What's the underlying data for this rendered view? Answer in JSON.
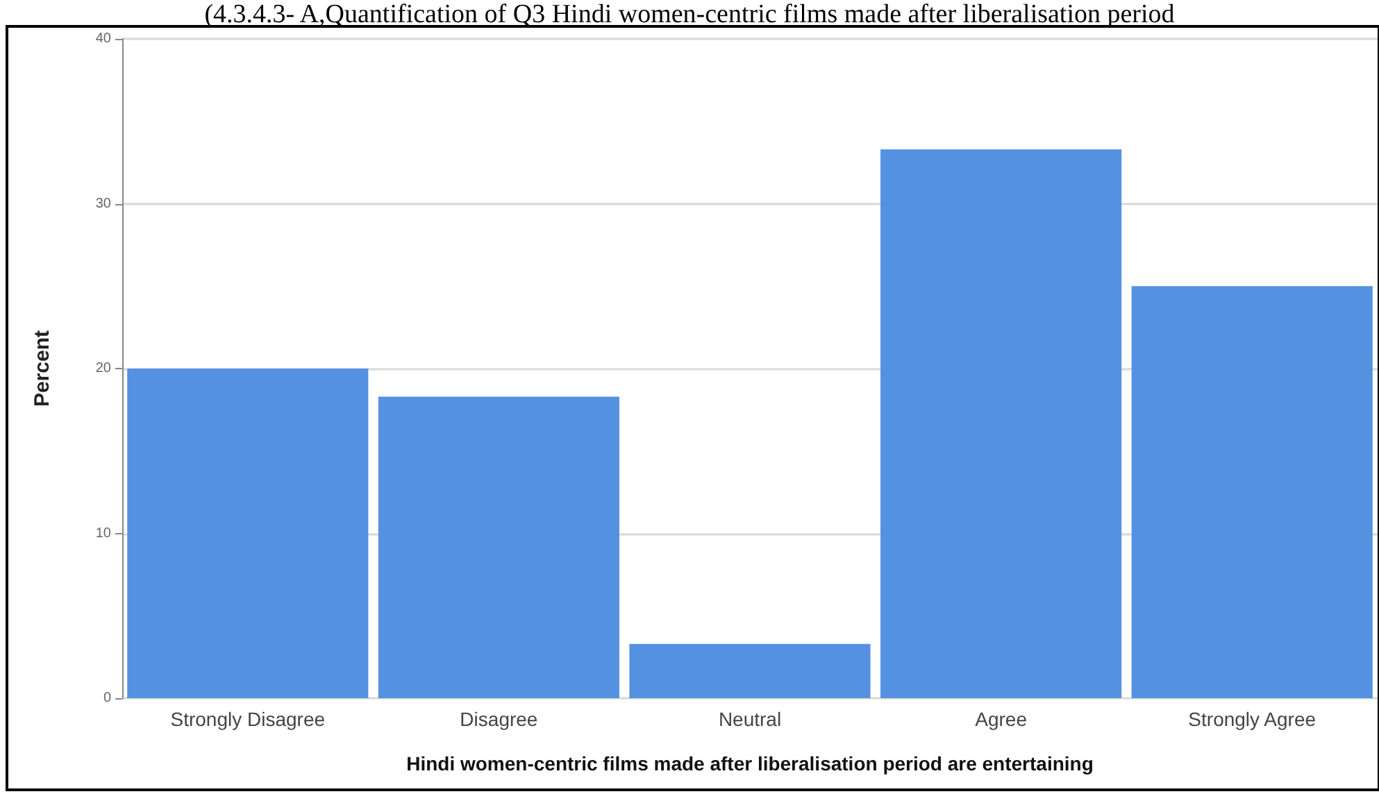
{
  "chart_data": {
    "type": "bar",
    "title": "(4.3.4.3- A,Quantification of Q3 Hindi women-centric films made after liberalisation period",
    "categories": [
      "Strongly Disagree",
      "Disagree",
      "Neutral",
      "Agree",
      "Strongly Agree"
    ],
    "values": [
      20,
      18.3,
      3.3,
      33.3,
      25
    ],
    "color": "#5591e1",
    "xlabel": "Hindi women-centric films made after liberalisation period are entertaining",
    "ylabel": "Percent",
    "ylim": [
      0,
      40
    ],
    "yticks": [
      0,
      10,
      20,
      30,
      40
    ],
    "grid": "y"
  }
}
